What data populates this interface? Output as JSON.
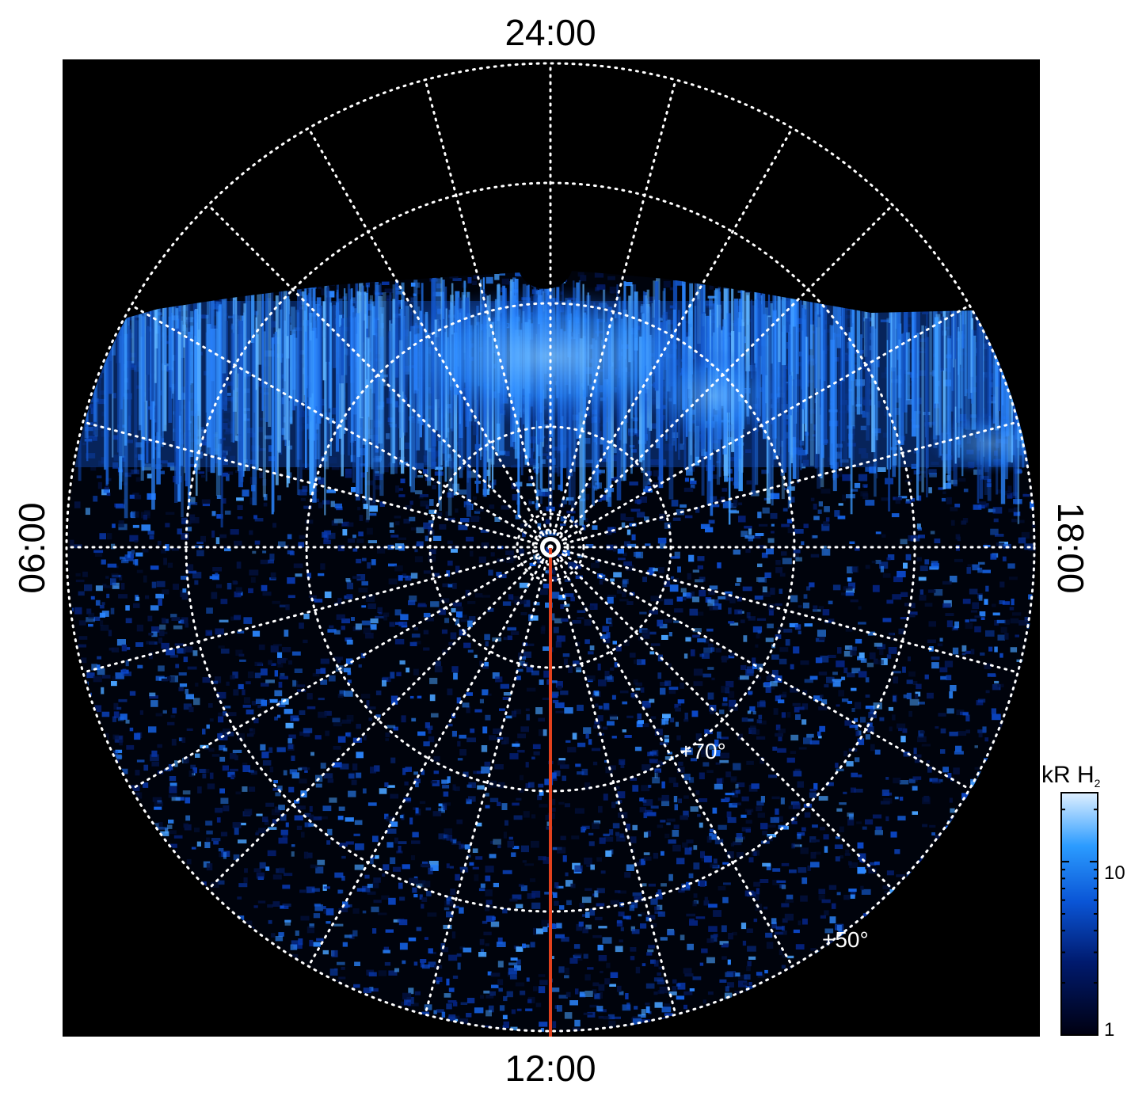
{
  "local_time_labels": {
    "top": "24:00",
    "bottom": "12:00",
    "left": "06:00",
    "right": "18:00"
  },
  "latitude_labels": {
    "inner": "+70°",
    "outer": "+50°"
  },
  "colorbar": {
    "title_main": "kR H",
    "title_sub": "2",
    "ticks": [
      {
        "label": "10",
        "value": 10
      },
      {
        "label": "1",
        "value": 1
      }
    ],
    "scale": "log",
    "range": [
      1,
      25
    ],
    "colors": [
      "#000010",
      "#001a6e",
      "#0a55d6",
      "#2b9bff",
      "#cfe8ff"
    ]
  },
  "colors": {
    "background": "#000000",
    "grid": "#ffffff",
    "meridian_line": "#e2401c",
    "aurora": "#2e8bff",
    "noise": "#0b47c8"
  }
}
